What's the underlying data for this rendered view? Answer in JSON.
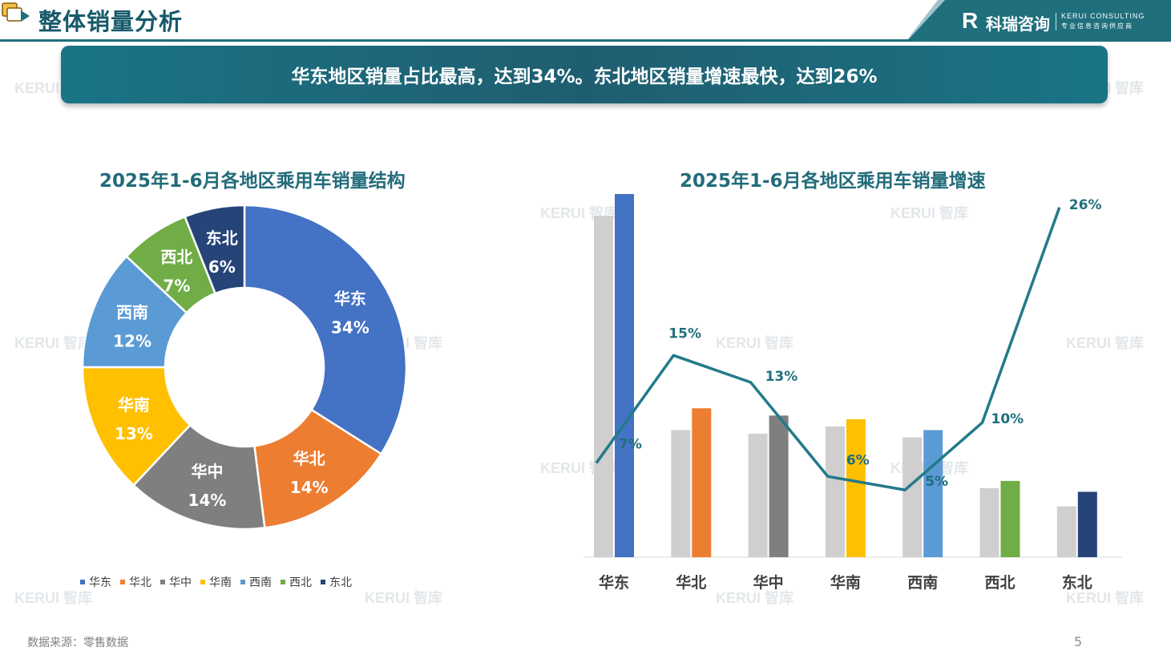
{
  "page": {
    "title": "整体销量分析",
    "logo_mark": "R",
    "logo_name": "科瑞咨询",
    "logo_en": "KERUI CONSULTING",
    "logo_sub": "专业信息咨询供应商",
    "banner": "华东地区销量占比最高，达到34%。东北地区销量增速最快，达到26%",
    "watermark": "KERUI 智库",
    "source": "数据来源：零售数据",
    "page_number": "5"
  },
  "colors": {
    "theme": "#1f6f7d",
    "title_teal": "#226c7a",
    "label_teal": "#1f6f7d",
    "comparison_bar": "#d0cece",
    "line": "#237a8a"
  },
  "chart_data": [
    {
      "type": "pie",
      "variant": "donut",
      "title": "2025年1-6月各地区乘用车销量结构",
      "legend_position": "bottom",
      "slices": [
        {
          "name": "华东",
          "value": 34,
          "label": "34%",
          "color": "#4472c4"
        },
        {
          "name": "华北",
          "value": 14,
          "label": "14%",
          "color": "#ed7d31"
        },
        {
          "name": "华中",
          "value": 14,
          "label": "14%",
          "color": "#7f7f7f"
        },
        {
          "name": "华南",
          "value": 13,
          "label": "13%",
          "color": "#ffc000"
        },
        {
          "name": "西南",
          "value": 12,
          "label": "12%",
          "color": "#5b9bd5"
        },
        {
          "name": "西北",
          "value": 7,
          "label": "7%",
          "color": "#70ad47"
        },
        {
          "name": "东北",
          "value": 6,
          "label": "6%",
          "color": "#264478"
        }
      ]
    },
    {
      "type": "bar",
      "combo": "bar+line",
      "title": "2025年1-6月各地区乘用车销量增速",
      "categories": [
        "华东",
        "华北",
        "华中",
        "华南",
        "西南",
        "西北",
        "东北"
      ],
      "bar_series": [
        {
          "values": [
            94,
            35,
            34,
            36,
            33,
            19,
            14
          ],
          "color": "#d0cece"
        },
        {
          "values": [
            100,
            41,
            39,
            38,
            35,
            21,
            18
          ],
          "colors": [
            "#4472c4",
            "#ed7d31",
            "#7f7f7f",
            "#ffc000",
            "#5b9bd5",
            "#70ad47",
            "#264478"
          ]
        }
      ],
      "bar_ylim": [
        0,
        100
      ],
      "line_series": {
        "values": [
          7,
          15,
          13,
          6,
          5,
          10,
          26
        ],
        "labels": [
          "7%",
          "15%",
          "13%",
          "6%",
          "5%",
          "10%",
          "26%"
        ],
        "ylim": [
          0,
          27
        ]
      },
      "grid": false
    }
  ]
}
